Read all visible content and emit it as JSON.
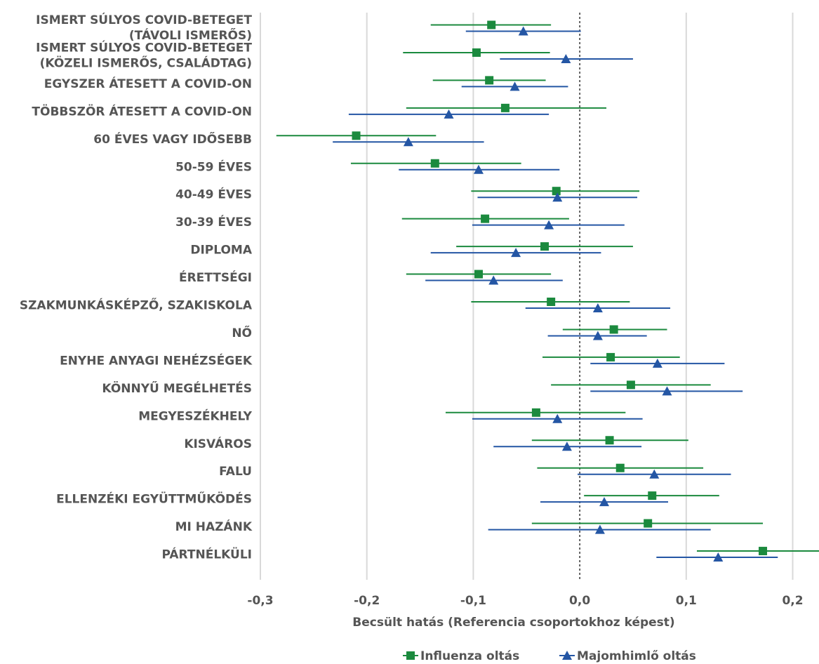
{
  "colors": {
    "series1": "#1b8a3e",
    "series2": "#2456a4",
    "grid": "#d9d9d9",
    "zero": "#333333",
    "text": "#555555"
  },
  "chart_data": {
    "type": "scatter",
    "subtype": "coefficient-plot-with-confidence-intervals",
    "xlabel": "Becsült hatás  (Referencia csoportokhoz képest)",
    "xlim": [
      -0.3,
      0.22
    ],
    "xticks": [
      -0.3,
      -0.2,
      -0.1,
      0.0,
      0.1,
      0.2
    ],
    "xtick_labels": [
      "-0,3",
      "-0,2",
      "-0,1",
      "0,0",
      "0,1",
      "0,2"
    ],
    "grid": "vertical",
    "reference_line": 0.0,
    "legend_position": "bottom",
    "categories": [
      [
        "ISMERT SÚLYOS COVID-BETEGET",
        "(TÁVOLI ISMERŐS)"
      ],
      [
        "ISMERT SÚLYOS COVID-BETEGET",
        "(KÖZELI ISMERŐS, CSALÁDTAG)"
      ],
      [
        "EGYSZER ÁTESETT A COVID-ON"
      ],
      [
        "TÖBBSZÖR ÁTESETT A COVID-ON"
      ],
      [
        "60 ÉVES VAGY IDŐSEBB"
      ],
      [
        "50-59 ÉVES"
      ],
      [
        "40-49 ÉVES"
      ],
      [
        "30-39 ÉVES"
      ],
      [
        "DIPLOMA"
      ],
      [
        "ÉRETTSÉGI"
      ],
      [
        "SZAKMUNKÁSKÉPZŐ, SZAKISKOLA"
      ],
      [
        "NŐ"
      ],
      [
        "ENYHE ANYAGI NEHÉZSÉGEK"
      ],
      [
        "KÖNNYŰ MEGÉLHETÉS"
      ],
      [
        "MEGYESZÉKHELY"
      ],
      [
        "KISVÁROS"
      ],
      [
        "FALU"
      ],
      [
        "ELLENZÉKI EGYÜTTMŰKÖDÉS"
      ],
      [
        "MI HAZÁNK"
      ],
      [
        "PÁRTNÉLKÜLI"
      ]
    ],
    "series": [
      {
        "name": "Influenza oltás",
        "marker": "square",
        "estimates": [
          -0.083,
          -0.097,
          -0.085,
          -0.07,
          -0.21,
          -0.136,
          -0.022,
          -0.089,
          -0.033,
          -0.095,
          -0.027,
          0.032,
          0.029,
          0.048,
          -0.041,
          0.028,
          0.038,
          0.068,
          0.064,
          0.172
        ],
        "ci_low": [
          -0.14,
          -0.166,
          -0.138,
          -0.163,
          -0.285,
          -0.215,
          -0.102,
          -0.167,
          -0.116,
          -0.163,
          -0.102,
          -0.016,
          -0.035,
          -0.027,
          -0.126,
          -0.045,
          -0.04,
          0.004,
          -0.045,
          0.11
        ],
        "ci_high": [
          -0.027,
          -0.028,
          -0.032,
          0.025,
          -0.135,
          -0.055,
          0.056,
          -0.01,
          0.05,
          -0.027,
          0.047,
          0.082,
          0.094,
          0.123,
          0.043,
          0.102,
          0.116,
          0.131,
          0.172,
          0.225
        ]
      },
      {
        "name": "Majomhimlő oltás",
        "marker": "triangle",
        "estimates": [
          -0.053,
          -0.013,
          -0.061,
          -0.123,
          -0.161,
          -0.095,
          -0.021,
          -0.029,
          -0.06,
          -0.081,
          0.017,
          0.017,
          0.073,
          0.082,
          -0.021,
          -0.012,
          0.07,
          0.023,
          0.019,
          0.13
        ],
        "ci_low": [
          -0.107,
          -0.075,
          -0.111,
          -0.217,
          -0.232,
          -0.17,
          -0.096,
          -0.101,
          -0.14,
          -0.145,
          -0.051,
          -0.03,
          0.01,
          0.01,
          -0.101,
          -0.081,
          -0.002,
          -0.037,
          -0.086,
          0.072
        ],
        "ci_high": [
          0.001,
          0.05,
          -0.011,
          -0.029,
          -0.09,
          -0.019,
          0.054,
          0.042,
          0.02,
          -0.016,
          0.085,
          0.063,
          0.136,
          0.153,
          0.059,
          0.058,
          0.142,
          0.083,
          0.123,
          0.186
        ]
      }
    ]
  }
}
